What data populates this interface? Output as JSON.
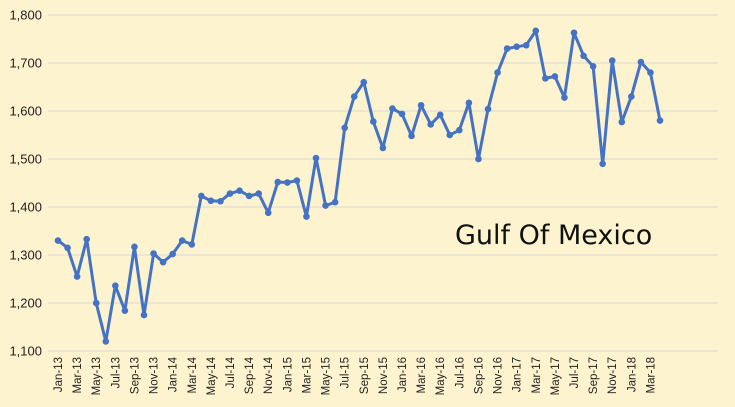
{
  "chart_data": {
    "type": "line",
    "title": "",
    "xlabel": "",
    "ylabel": "",
    "annotation": "Gulf Of Mexico",
    "ylim": [
      1100,
      1800
    ],
    "yticks": [
      "1,100",
      "1,200",
      "1,300",
      "1,400",
      "1,500",
      "1,600",
      "1,700",
      "1,800"
    ],
    "grid": "horizontal",
    "legend": "none",
    "line_color": "#4472c4",
    "background_color": "#fdf3cf",
    "xtick_labels": [
      "Jan-13",
      "Mar-13",
      "May-13",
      "Jul-13",
      "Sep-13",
      "Nov-13",
      "Jan-14",
      "Mar-14",
      "May-14",
      "Jul-14",
      "Sep-14",
      "Nov-14",
      "Jan-15",
      "Mar-15",
      "May-15",
      "Jul-15",
      "Sep-15",
      "Nov-15",
      "Jan-16",
      "Mar-16",
      "May-16",
      "Jul-16",
      "Sep-16",
      "Nov-16",
      "Jan-17",
      "Mar-17",
      "May-17",
      "Jul-17",
      "Sep-17",
      "Nov-17",
      "Jan-18",
      "Mar-18"
    ],
    "x": [
      "Jan-13",
      "Feb-13",
      "Mar-13",
      "Apr-13",
      "May-13",
      "Jun-13",
      "Jul-13",
      "Aug-13",
      "Sep-13",
      "Oct-13",
      "Nov-13",
      "Dec-13",
      "Jan-14",
      "Feb-14",
      "Mar-14",
      "Apr-14",
      "May-14",
      "Jun-14",
      "Jul-14",
      "Aug-14",
      "Sep-14",
      "Oct-14",
      "Nov-14",
      "Dec-14",
      "Jan-15",
      "Feb-15",
      "Mar-15",
      "Apr-15",
      "May-15",
      "Jun-15",
      "Jul-15",
      "Aug-15",
      "Sep-15",
      "Oct-15",
      "Nov-15",
      "Dec-15",
      "Jan-16",
      "Feb-16",
      "Mar-16",
      "Apr-16",
      "May-16",
      "Jun-16",
      "Jul-16",
      "Aug-16",
      "Sep-16",
      "Oct-16",
      "Nov-16",
      "Dec-16",
      "Jan-17",
      "Feb-17",
      "Mar-17",
      "Apr-17",
      "May-17",
      "Jun-17",
      "Jul-17",
      "Aug-17",
      "Sep-17",
      "Oct-17",
      "Nov-17",
      "Dec-17",
      "Jan-18",
      "Feb-18",
      "Mar-18",
      "Apr-18"
    ],
    "series": [
      {
        "values": [
          1330,
          1315,
          1255,
          1333,
          1200,
          1120,
          1236,
          1184,
          1317,
          1175,
          1303,
          1285,
          1302,
          1330,
          1322,
          1423,
          1413,
          1412,
          1428,
          1434,
          1423,
          1428,
          1388,
          1452,
          1451,
          1455,
          1380,
          1502,
          1403,
          1410,
          1565,
          1630,
          1660,
          1578,
          1523,
          1605,
          1594,
          1548,
          1612,
          1572,
          1592,
          1550,
          1560,
          1617,
          1500,
          1604,
          1680,
          1730,
          1734,
          1737,
          1767,
          1668,
          1672,
          1628,
          1763,
          1715,
          1693,
          1490,
          1705,
          1577,
          1630,
          1702,
          1680,
          1580
        ]
      }
    ]
  }
}
